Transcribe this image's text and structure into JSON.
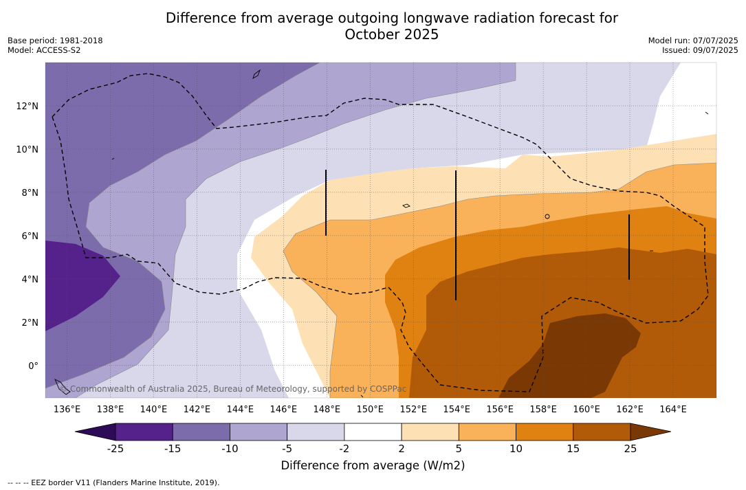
{
  "header": {
    "title_line1": "Difference from average outgoing longwave radiation forecast for",
    "title_line2": "October 2025",
    "base_period": "Base period: 1981-2018",
    "model": "Model: ACCESS-S2",
    "model_run": "Model run: 07/07/2025",
    "issued": "Issued: 09/07/2025"
  },
  "map": {
    "lon_range": [
      135,
      166
    ],
    "lat_range": [
      -1.5,
      14
    ],
    "lon_ticks": [
      "136°E",
      "138°E",
      "140°E",
      "142°E",
      "144°E",
      "146°E",
      "148°E",
      "150°E",
      "152°E",
      "154°E",
      "156°E",
      "158°E",
      "160°E",
      "162°E",
      "164°E"
    ],
    "lat_ticks": [
      "12°N",
      "10°N",
      "8°N",
      "6°N",
      "4°N",
      "2°N",
      "0°"
    ],
    "copyright": "© Commonwealth of Australia 2025, Bureau of Meteorology, supported by COSPPac",
    "grid": true
  },
  "colorbar": {
    "tick_labels": [
      "-25",
      "-15",
      "-10",
      "-5",
      "-2",
      "2",
      "5",
      "10",
      "15",
      "25"
    ],
    "colors": [
      "#2d0b57",
      "#55218a",
      "#7d6cab",
      "#aea6d0",
      "#d8d8ea",
      "#ffffff",
      "#fde0b4",
      "#f9b25a",
      "#e08212",
      "#b15a07",
      "#7a3804"
    ],
    "label": "Difference from average (W/m2)"
  },
  "legend": {
    "eez_label": "--  --  -- EEZ border V11 (Flanders Marine Institute, 2019)."
  }
}
